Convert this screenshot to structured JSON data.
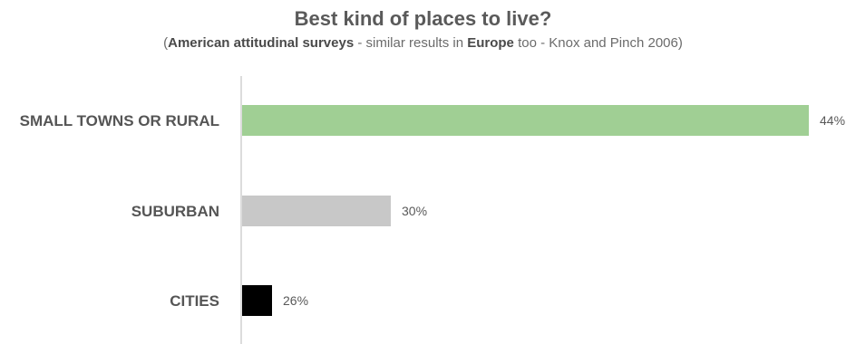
{
  "chart_data": {
    "type": "bar",
    "orientation": "horizontal",
    "title": "Best kind of places to live?",
    "subtitle": {
      "open": "(",
      "part1": "American attitudinal surveys",
      "part2": " - similar results in ",
      "part3": "Europe",
      "part4": " too - Knox and Pinch 2006)"
    },
    "categories": [
      "SMALL TOWNS OR RURAL",
      "SUBURBAN",
      "CITIES"
    ],
    "values": [
      44,
      30,
      26
    ],
    "value_labels": [
      "44%",
      "30%",
      "26%"
    ],
    "colors": [
      "#a0cf94",
      "#c8c8c8",
      "#000000"
    ],
    "grid": false
  }
}
